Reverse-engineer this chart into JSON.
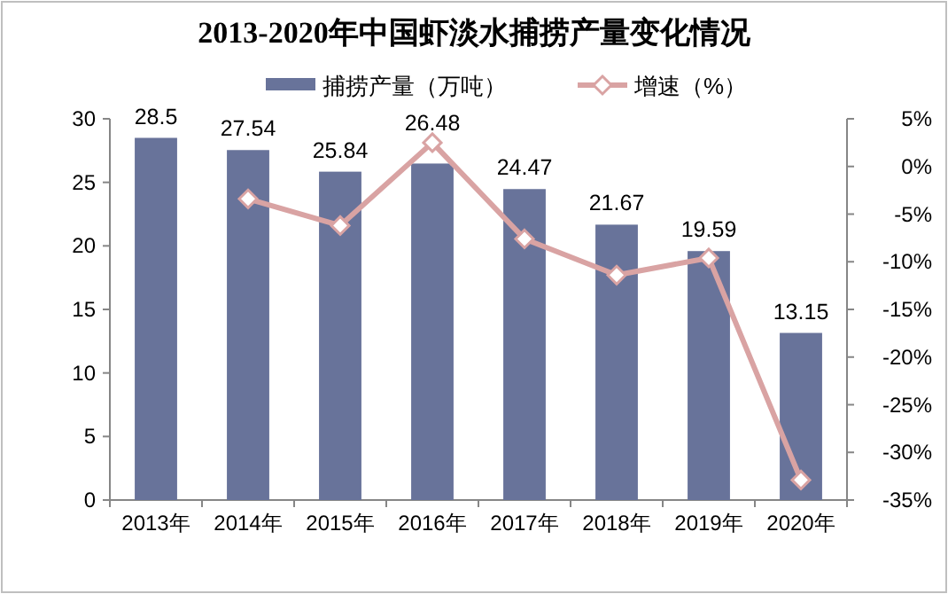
{
  "chart_data": {
    "type": "bar",
    "title": "2013-2020年中国虾淡水捕捞产量变化情况",
    "categories": [
      "2013年",
      "2014年",
      "2015年",
      "2016年",
      "2017年",
      "2018年",
      "2019年",
      "2020年"
    ],
    "series": [
      {
        "name": "捕捞产量（万吨）",
        "color": "#68739a",
        "values": [
          28.5,
          27.54,
          25.84,
          26.48,
          24.47,
          21.67,
          19.59,
          13.15
        ],
        "data_labels": true
      },
      {
        "name": "增速（%）",
        "type": "line",
        "axis": "y2",
        "color": "#d9a3a3",
        "marker": "diamond",
        "values": [
          null,
          -3.4,
          -6.2,
          2.5,
          -7.6,
          -11.4,
          -9.6,
          -32.9
        ]
      }
    ],
    "ylim": [
      0,
      30
    ],
    "yticks": [
      0,
      5,
      10,
      15,
      20,
      25,
      30
    ],
    "y2lim": [
      -35,
      5
    ],
    "y2ticks": [
      {
        "value": 5,
        "label": "5%"
      },
      {
        "value": 0,
        "label": "0%"
      },
      {
        "value": -5,
        "label": "-5%"
      },
      {
        "value": -10,
        "label": "-10%"
      },
      {
        "value": -15,
        "label": "-15%"
      },
      {
        "value": -20,
        "label": "-20%"
      },
      {
        "value": -25,
        "label": "-25%"
      },
      {
        "value": -30,
        "label": "-30%"
      },
      {
        "value": -35,
        "label": "-35%"
      }
    ],
    "grid": false,
    "legend": "top"
  }
}
